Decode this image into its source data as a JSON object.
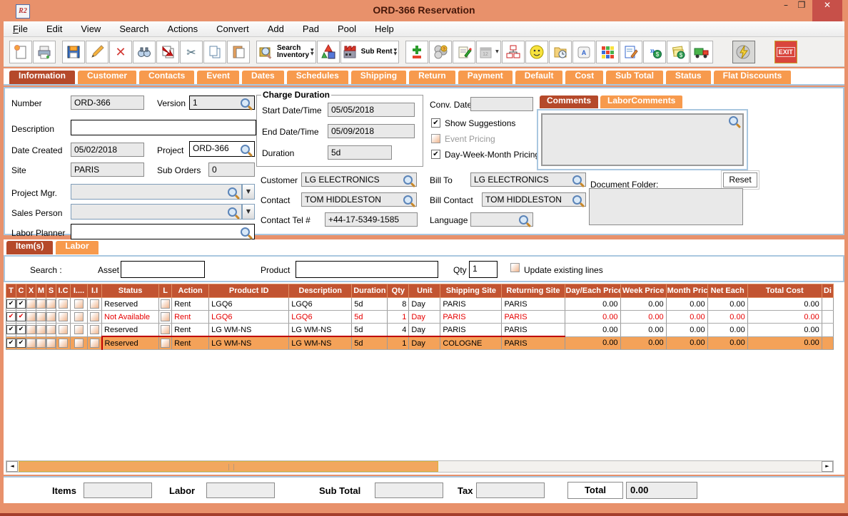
{
  "window": {
    "title": "ORD-366 Reservation",
    "app_icon_text": "R2",
    "minimize_glyph": "–",
    "close_glyph": "✕"
  },
  "menu": {
    "items": [
      "File",
      "Edit",
      "View",
      "Search",
      "Actions",
      "Convert",
      "Add",
      "Pad",
      "Pool",
      "Help"
    ]
  },
  "toolbar": {
    "icons": [
      "new-document",
      "print",
      "save",
      "edit-pencil",
      "delete",
      "find-binoculars",
      "paste-special",
      "cut",
      "copy",
      "paste",
      "search-inventory",
      "product-shapes",
      "sub-rent",
      "add-line",
      "query-balls",
      "notes",
      "calendar",
      "org-chart",
      "smiley",
      "folder-clock",
      "keyboard-key",
      "rubik-blocks",
      "edit-form",
      "transfer-money",
      "invoice-money",
      "truck",
      "lightning",
      "exit"
    ],
    "search_inventory_label_1": "Search",
    "search_inventory_label_2": "Inventory",
    "sub_rent_label": "Sub Rent",
    "exit_label": "EXIT"
  },
  "tabs": {
    "active": "Information",
    "items": [
      "Information",
      "Customer",
      "Contacts",
      "Event",
      "Dates",
      "Schedules",
      "Shipping",
      "Return",
      "Payment",
      "Default",
      "Cost",
      "Sub Total",
      "Status",
      "Flat Discounts"
    ]
  },
  "form": {
    "number": {
      "label": "Number",
      "value": "ORD-366"
    },
    "version": {
      "label": "Version",
      "value": "1"
    },
    "description": {
      "label": "Description",
      "value": ""
    },
    "date_created": {
      "label": "Date Created",
      "value": "05/02/2018"
    },
    "project": {
      "label": "Project",
      "value": "ORD-366"
    },
    "site": {
      "label": "Site",
      "value": "PARIS"
    },
    "sub_orders": {
      "label": "Sub Orders",
      "value": "0"
    },
    "project_mgr": {
      "label": "Project Mgr.",
      "value": ""
    },
    "sales_person": {
      "label": "Sales Person",
      "value": ""
    },
    "labor_planner": {
      "label": "Labor Planner",
      "value": ""
    },
    "charge_duration": {
      "legend": "Charge Duration",
      "start": {
        "label": "Start Date/Time",
        "value": "05/05/2018"
      },
      "end": {
        "label": "End Date/Time",
        "value": "05/09/2018"
      },
      "duration": {
        "label": "Duration",
        "value": "5d"
      }
    },
    "conv_date": {
      "label": "Conv. Date",
      "value": ""
    },
    "show_suggestions": {
      "label": "Show Suggestions",
      "checked": true
    },
    "event_pricing": {
      "label": "Event Pricing",
      "checked": false
    },
    "day_week_month": {
      "label": "Day-Week-Month Pricing",
      "checked": true
    },
    "customer": {
      "label": "Customer",
      "value": "LG ELECTRONICS"
    },
    "bill_to": {
      "label": "Bill To",
      "value": "LG ELECTRONICS"
    },
    "contact": {
      "label": "Contact",
      "value": "TOM HIDDLESTON"
    },
    "bill_contact": {
      "label": "Bill Contact",
      "value": "TOM HIDDLESTON"
    },
    "contact_tel": {
      "label": "Contact Tel #",
      "value": "+44-17-5349-1585"
    },
    "language": {
      "label": "Language",
      "value": ""
    },
    "comments_tabs": {
      "active": "Comments",
      "items": [
        "Comments",
        "LaborComments"
      ]
    },
    "document_folder_label": "Document Folder:",
    "reset_label": "Reset"
  },
  "items_section": {
    "tabs": {
      "active": "Item(s)",
      "items": [
        "Item(s)",
        "Labor"
      ]
    },
    "search": {
      "label": "Search :",
      "asset_label": "Asset",
      "asset_value": "",
      "product_label": "Product",
      "product_value": "",
      "qty_label": "Qty",
      "qty_value": "1",
      "update_label": "Update existing lines",
      "update_checked": false
    },
    "table": {
      "columns": [
        "T",
        "C",
        "X",
        "M",
        "S",
        "I.C",
        "I....",
        "I.I",
        "Status",
        "L",
        "Action",
        "Product ID",
        "Description",
        "Duration",
        "Qty",
        "Unit",
        "Shipping Site",
        "Returning Site",
        "Day/Each Price",
        "Week Price",
        "Month Price",
        "Net Each",
        "Total Cost",
        "Di"
      ],
      "rows": [
        {
          "state": "normal",
          "t_checked": true,
          "c_checked": true,
          "status": "Reserved",
          "action": "Rent",
          "product_id": "LGQ6",
          "description": "LGQ6",
          "duration": "5d",
          "qty": "8",
          "unit": "Day",
          "shipping_site": "PARIS",
          "returning_site": "PARIS",
          "prices": [
            "0.00",
            "0.00",
            "0.00",
            "0.00",
            "0.00"
          ]
        },
        {
          "state": "unavail",
          "t_checked": true,
          "c_checked": true,
          "status": "Not Available",
          "action": "Rent",
          "product_id": "LGQ6",
          "description": "LGQ6",
          "duration": "5d",
          "qty": "1",
          "unit": "Day",
          "shipping_site": "PARIS",
          "returning_site": "PARIS",
          "prices": [
            "0.00",
            "0.00",
            "0.00",
            "0.00",
            "0.00"
          ]
        },
        {
          "state": "normal",
          "t_checked": true,
          "c_checked": true,
          "status": "Reserved",
          "action": "Rent",
          "product_id": "LG WM-NS",
          "description": "LG WM-NS",
          "duration": "5d",
          "qty": "4",
          "unit": "Day",
          "shipping_site": "PARIS",
          "returning_site": "PARIS",
          "prices": [
            "0.00",
            "0.00",
            "0.00",
            "0.00",
            "0.00"
          ]
        },
        {
          "state": "sel",
          "t_checked": true,
          "c_checked": true,
          "status": "Reserved",
          "action": "Rent",
          "product_id": "LG WM-NS",
          "description": "LG WM-NS",
          "duration": "5d",
          "qty": "1",
          "unit": "Day",
          "shipping_site": "COLOGNE",
          "returning_site": "PARIS",
          "prices": [
            "0.00",
            "0.00",
            "0.00",
            "0.00",
            "0.00"
          ]
        }
      ]
    }
  },
  "totals": {
    "items_label": "Items",
    "items_value": "",
    "labor_label": "Labor",
    "labor_value": "",
    "sub_total_label": "Sub Total",
    "sub_total_value": "",
    "tax_label": "Tax",
    "tax_value": "",
    "total_label": "Total",
    "total_value": "0.00"
  },
  "colors": {
    "title_bar": "#E8916B",
    "tab_orange": "#F79A4D",
    "tab_active": "#B5492A",
    "grid_header": "#C25431",
    "selected_row": "#F4A259",
    "unavailable_text": "#E60000",
    "close_button": "#C75049",
    "panel_border": "#A9C7E0"
  }
}
